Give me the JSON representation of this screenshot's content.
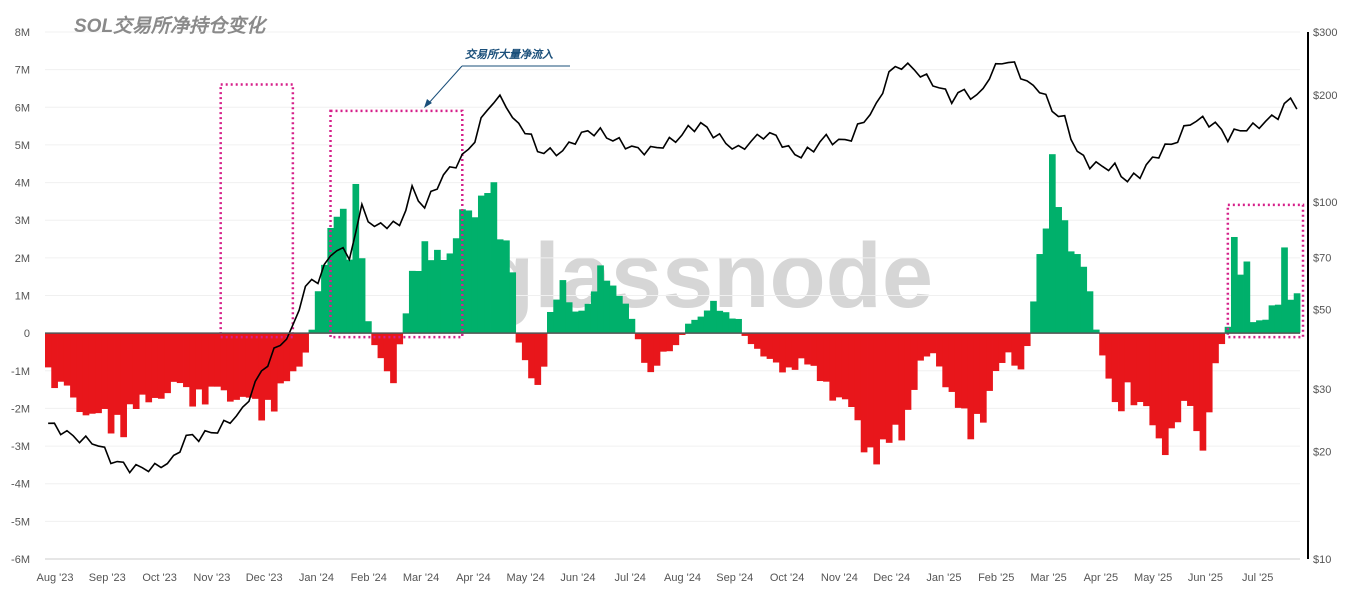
{
  "chart_data": {
    "type": "bar",
    "title": "SOL交易所净持仓变化",
    "watermark": "glassnode",
    "annotation": "交易所大量净流入",
    "colors": {
      "inflow": "#00b06b",
      "outflow": "#e8161b",
      "price": "#000000",
      "highlight": "#d6208a"
    },
    "y_left": {
      "ticks": [
        8,
        7,
        6,
        5,
        4,
        3,
        2,
        1,
        0,
        -1,
        -2,
        -3,
        -4,
        -5,
        -6
      ],
      "labels": [
        "8M",
        "7M",
        "6M",
        "5M",
        "4M",
        "3M",
        "2M",
        "1M",
        "0",
        "-1M",
        "-2M",
        "-3M",
        "-4M",
        "-5M",
        "-6M"
      ],
      "ylim": [
        -6,
        8
      ]
    },
    "y_right": {
      "scale": "log",
      "ticks": [
        300,
        200,
        100,
        70,
        50,
        30,
        20,
        10
      ],
      "labels": [
        "$300",
        "$200",
        "$100",
        "$70",
        "$50",
        "$30",
        "$20",
        "$10"
      ],
      "ylim": [
        10,
        300
      ]
    },
    "x_labels": [
      "Aug '23",
      "Sep '23",
      "Oct '23",
      "Nov '23",
      "Dec '23",
      "Jan '24",
      "Feb '24",
      "Mar '24",
      "Apr '24",
      "May '24",
      "Jun '24",
      "Jul '24",
      "Aug '24",
      "Sep '24",
      "Oct '24",
      "Nov '24",
      "Dec '24",
      "Jan '25",
      "Feb '25",
      "Mar '25",
      "Apr '25",
      "May '25",
      "Jun '25",
      "Jul '25"
    ],
    "series": [
      {
        "role": "net_position_change",
        "unit": "M SOL",
        "keyframes": [
          [
            0,
            -1.3
          ],
          [
            4,
            -2.2
          ],
          [
            8,
            -2.6
          ],
          [
            10,
            -3.1
          ],
          [
            13,
            -2.6
          ],
          [
            17,
            -2.0
          ],
          [
            20,
            -1.7
          ],
          [
            24,
            -2.1
          ],
          [
            27,
            -1.9
          ],
          [
            31,
            -2.0
          ],
          [
            34,
            -2.6
          ],
          [
            36,
            -2.1
          ],
          [
            39,
            -1.4
          ],
          [
            41,
            -0.6
          ],
          [
            42,
            0.1
          ],
          [
            43,
            1.3
          ],
          [
            45,
            3.6
          ],
          [
            46,
            4.0
          ],
          [
            48,
            2.7
          ],
          [
            49,
            4.4
          ],
          [
            50,
            2.8
          ],
          [
            51,
            0.4
          ],
          [
            52,
            -0.4
          ],
          [
            53,
            -0.7
          ],
          [
            55,
            -1.6
          ],
          [
            56,
            -0.4
          ],
          [
            58,
            1.8
          ],
          [
            60,
            2.5
          ],
          [
            62,
            3.0
          ],
          [
            64,
            2.3
          ],
          [
            66,
            3.6
          ],
          [
            68,
            4.3
          ],
          [
            70,
            4.7
          ],
          [
            72,
            3.4
          ],
          [
            74,
            2.3
          ],
          [
            75,
            -0.3
          ],
          [
            76,
            -0.9
          ],
          [
            78,
            -1.6
          ],
          [
            79,
            -1.1
          ],
          [
            80,
            0.8
          ],
          [
            82,
            1.5
          ],
          [
            84,
            0.6
          ],
          [
            86,
            1.1
          ],
          [
            88,
            1.9
          ],
          [
            90,
            1.4
          ],
          [
            92,
            1.1
          ],
          [
            94,
            -0.2
          ],
          [
            96,
            -1.4
          ],
          [
            98,
            -0.7
          ],
          [
            100,
            -0.4
          ],
          [
            102,
            0.3
          ],
          [
            104,
            0.6
          ],
          [
            106,
            0.9
          ],
          [
            108,
            0.6
          ],
          [
            110,
            0.5
          ],
          [
            111,
            -0.1
          ],
          [
            113,
            -0.5
          ],
          [
            115,
            -0.9
          ],
          [
            117,
            -1.2
          ],
          [
            120,
            -0.9
          ],
          [
            123,
            -1.4
          ],
          [
            126,
            -2.1
          ],
          [
            129,
            -2.8
          ],
          [
            131,
            -3.8
          ],
          [
            133,
            -4.0
          ],
          [
            135,
            -3.3
          ],
          [
            137,
            -2.5
          ],
          [
            139,
            -1.0
          ],
          [
            141,
            -0.6
          ],
          [
            143,
            -1.5
          ],
          [
            145,
            -2.7
          ],
          [
            147,
            -3.0
          ],
          [
            149,
            -2.5
          ],
          [
            151,
            -1.4
          ],
          [
            153,
            -0.6
          ],
          [
            155,
            -1.2
          ],
          [
            156,
            -0.4
          ],
          [
            157,
            1.2
          ],
          [
            159,
            3.8
          ],
          [
            160,
            4.8
          ],
          [
            162,
            3.6
          ],
          [
            164,
            2.6
          ],
          [
            166,
            1.3
          ],
          [
            167,
            0.1
          ],
          [
            168,
            -0.8
          ],
          [
            170,
            -2.6
          ],
          [
            172,
            -1.7
          ],
          [
            174,
            -2.4
          ],
          [
            176,
            -3.0
          ],
          [
            178,
            -3.4
          ],
          [
            180,
            -2.9
          ],
          [
            182,
            -2.2
          ],
          [
            183,
            -3.6
          ],
          [
            185,
            -2.7
          ],
          [
            186,
            -1.0
          ],
          [
            187,
            -0.4
          ],
          [
            188,
            0.2
          ],
          [
            189,
            2.8
          ],
          [
            190,
            1.8
          ],
          [
            191,
            2.1
          ],
          [
            192,
            0.4
          ],
          [
            194,
            0.5
          ],
          [
            196,
            1.0
          ],
          [
            197,
            2.5
          ],
          [
            198,
            1.2
          ],
          [
            199,
            1.4
          ]
        ]
      },
      {
        "role": "sol_price",
        "unit": "USD",
        "keyframes": [
          [
            0,
            24
          ],
          [
            4,
            22
          ],
          [
            8,
            21
          ],
          [
            10,
            19
          ],
          [
            13,
            18
          ],
          [
            17,
            18
          ],
          [
            20,
            19
          ],
          [
            22,
            22
          ],
          [
            24,
            22
          ],
          [
            27,
            23
          ],
          [
            31,
            26
          ],
          [
            33,
            31
          ],
          [
            36,
            38
          ],
          [
            39,
            44
          ],
          [
            41,
            58
          ],
          [
            43,
            61
          ],
          [
            46,
            75
          ],
          [
            48,
            70
          ],
          [
            50,
            96
          ],
          [
            52,
            85
          ],
          [
            54,
            87
          ],
          [
            56,
            86
          ],
          [
            58,
            108
          ],
          [
            60,
            97
          ],
          [
            62,
            112
          ],
          [
            64,
            124
          ],
          [
            66,
            133
          ],
          [
            68,
            150
          ],
          [
            70,
            185
          ],
          [
            72,
            195
          ],
          [
            73,
            190
          ],
          [
            74,
            170
          ],
          [
            76,
            160
          ],
          [
            77,
            151
          ],
          [
            78,
            140
          ],
          [
            80,
            138
          ],
          [
            82,
            139
          ],
          [
            84,
            150
          ],
          [
            86,
            158
          ],
          [
            88,
            157
          ],
          [
            90,
            150
          ],
          [
            92,
            145
          ],
          [
            94,
            140
          ],
          [
            96,
            140
          ],
          [
            98,
            145
          ],
          [
            100,
            150
          ],
          [
            102,
            160
          ],
          [
            104,
            165
          ],
          [
            106,
            156
          ],
          [
            108,
            147
          ],
          [
            110,
            140
          ],
          [
            112,
            148
          ],
          [
            114,
            155
          ],
          [
            116,
            153
          ],
          [
            118,
            140
          ],
          [
            120,
            135
          ],
          [
            122,
            142
          ],
          [
            124,
            152
          ],
          [
            126,
            147
          ],
          [
            128,
            152
          ],
          [
            130,
            170
          ],
          [
            132,
            185
          ],
          [
            134,
            230
          ],
          [
            136,
            243
          ],
          [
            138,
            236
          ],
          [
            140,
            222
          ],
          [
            142,
            210
          ],
          [
            144,
            195
          ],
          [
            146,
            205
          ],
          [
            148,
            195
          ],
          [
            150,
            225
          ],
          [
            152,
            250
          ],
          [
            154,
            242
          ],
          [
            156,
            215
          ],
          [
            158,
            208
          ],
          [
            160,
            182
          ],
          [
            162,
            170
          ],
          [
            164,
            138
          ],
          [
            166,
            128
          ],
          [
            168,
            126
          ],
          [
            170,
            125
          ],
          [
            172,
            115
          ],
          [
            174,
            120
          ],
          [
            176,
            132
          ],
          [
            178,
            142
          ],
          [
            180,
            150
          ],
          [
            182,
            168
          ],
          [
            184,
            170
          ],
          [
            186,
            165
          ],
          [
            188,
            152
          ],
          [
            190,
            160
          ],
          [
            192,
            162
          ],
          [
            194,
            168
          ],
          [
            196,
            176
          ],
          [
            198,
            195
          ],
          [
            199,
            187
          ]
        ]
      }
    ],
    "highlights": [
      {
        "x_from": "late Nov '23",
        "x_to": "end Dec '23",
        "y_from": 0,
        "y_to": 6.5
      },
      {
        "x_from": "late Jan '24",
        "x_to": "end Mar '24",
        "y_from": 0,
        "y_to": 5.8
      },
      {
        "x_from": "early Jul '25",
        "x_to": "end Jul '25",
        "y_from": 0,
        "y_to": 3.3
      }
    ]
  }
}
